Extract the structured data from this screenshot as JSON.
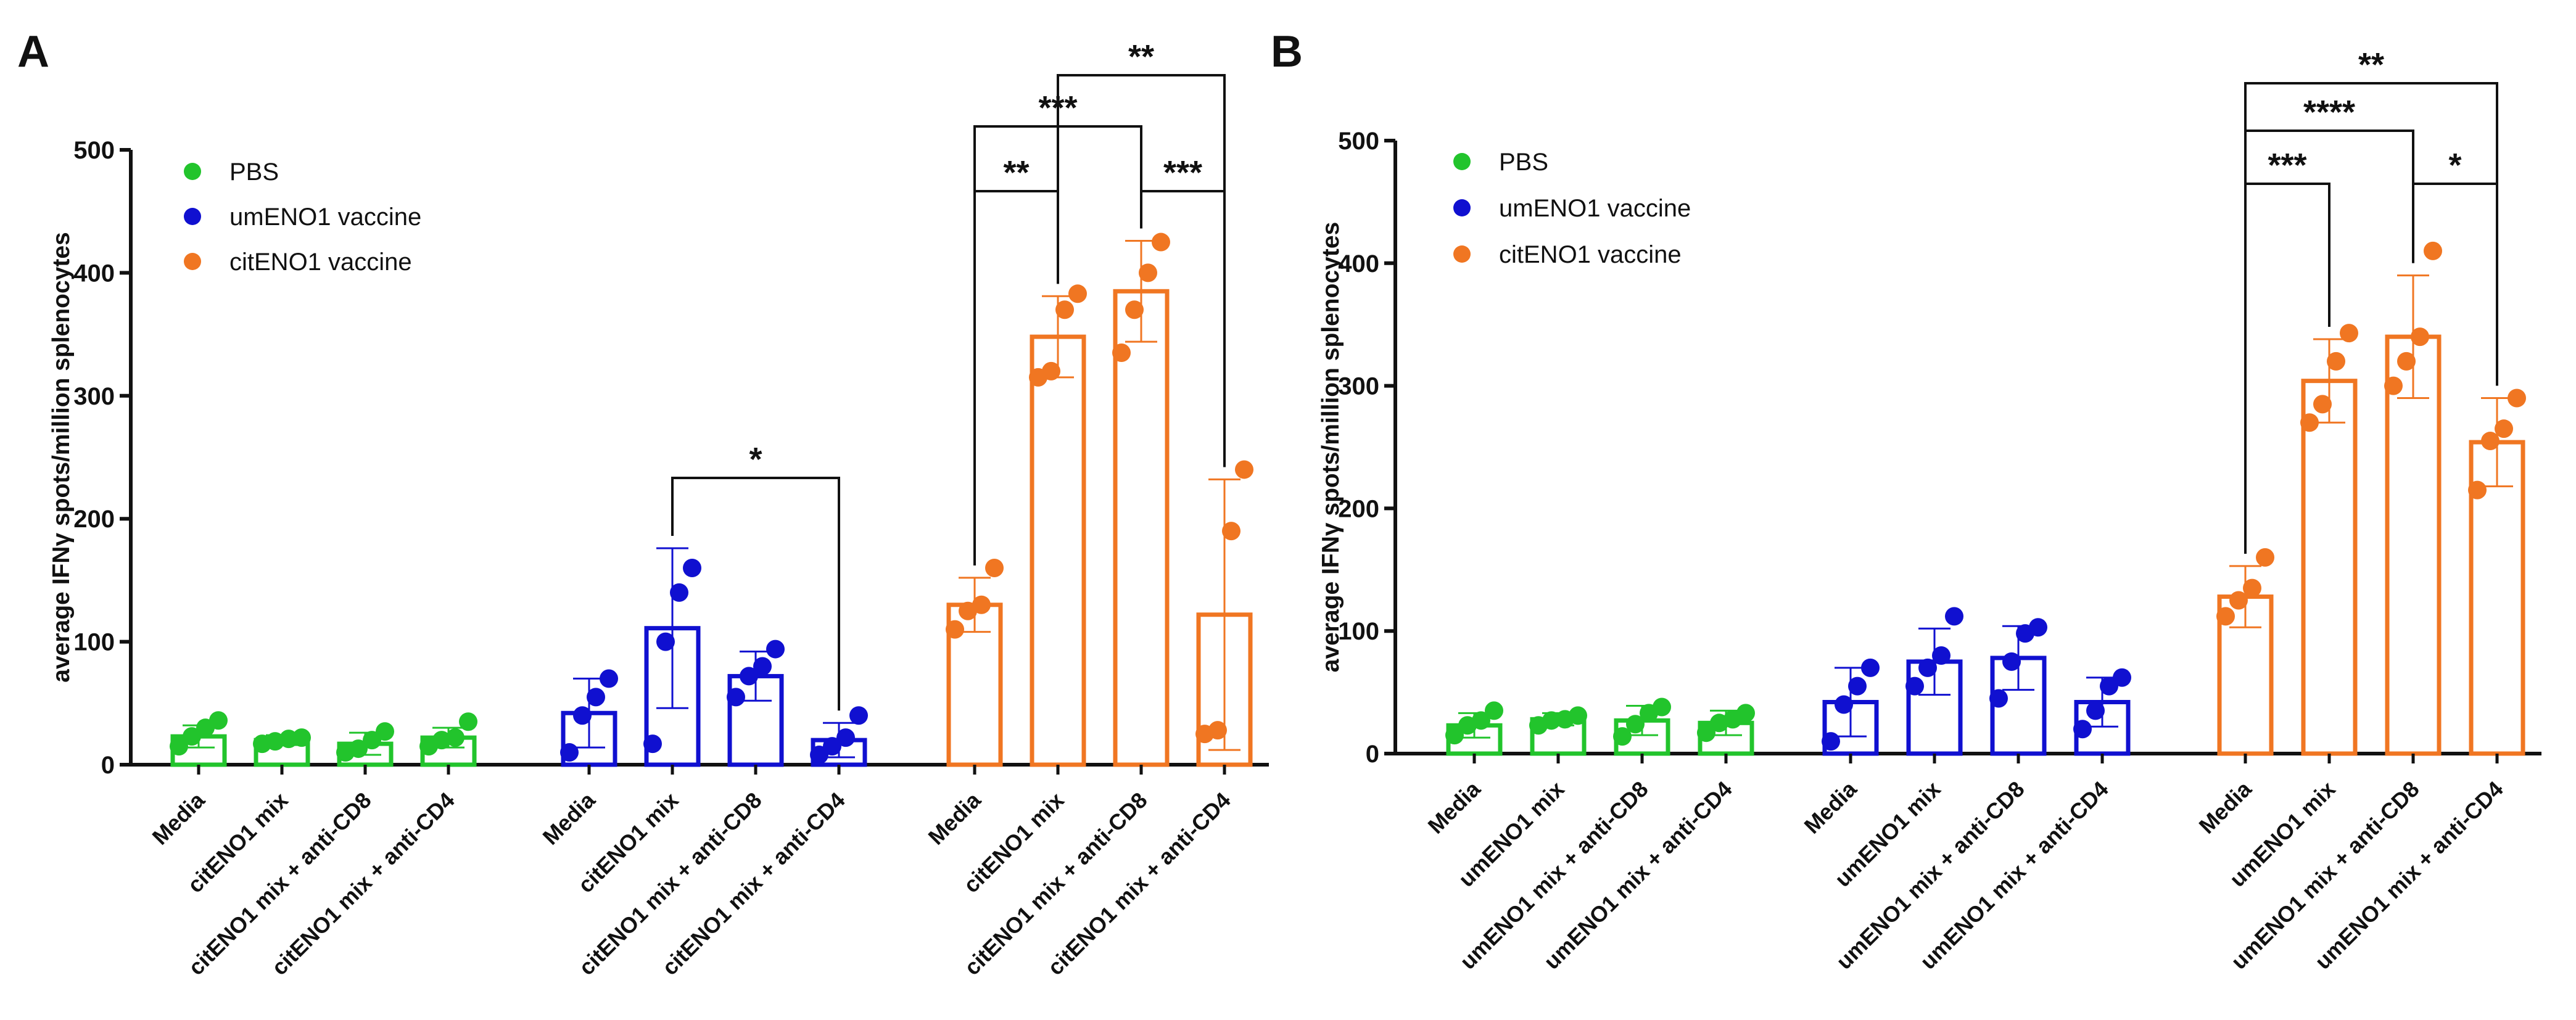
{
  "colors": {
    "PBS": "#22c42c",
    "umENO1 vaccine": "#1010d0",
    "citENO1 vaccine": "#f07622",
    "axis": "#111111"
  },
  "chart_data": [
    {
      "panel": "A",
      "type": "bar",
      "ylabel": "average IFNγ spots/million splenocytes",
      "ylim": [
        0,
        500
      ],
      "yticks": [
        0,
        100,
        200,
        300,
        400,
        500
      ],
      "legend": {
        "placement": "top-left",
        "entries": [
          "PBS",
          "umENO1 vaccine",
          "citENO1 vaccine"
        ]
      },
      "categories": [
        "Media",
        "citENO1 mix",
        "citENO1 mix + anti-CD8",
        "citENO1 mix + anti-CD4"
      ],
      "series": [
        {
          "name": "PBS",
          "values": [
            23,
            20,
            17,
            22
          ],
          "sd": [
            9,
            4,
            9,
            8
          ],
          "points": [
            [
              15,
              23,
              30,
              36
            ],
            [
              17,
              19,
              21,
              22
            ],
            [
              10,
              13,
              20,
              27
            ],
            [
              15,
              20,
              22,
              35
            ]
          ]
        },
        {
          "name": "umENO1 vaccine",
          "values": [
            42,
            111,
            72,
            20
          ],
          "sd": [
            28,
            65,
            20,
            14
          ],
          "points": [
            [
              10,
              40,
              55,
              70
            ],
            [
              17,
              100,
              140,
              160
            ],
            [
              55,
              72,
              80,
              94
            ],
            [
              8,
              15,
              22,
              40
            ]
          ]
        },
        {
          "name": "citENO1 vaccine",
          "values": [
            130,
            348,
            385,
            122
          ],
          "sd": [
            22,
            33,
            41,
            110
          ],
          "points": [
            [
              110,
              125,
              130,
              160
            ],
            [
              315,
              320,
              370,
              383
            ],
            [
              335,
              370,
              400,
              425
            ],
            [
              25,
              28,
              190,
              240
            ]
          ]
        }
      ],
      "significance": [
        {
          "label": "*",
          "from": [
            "umENO1 vaccine",
            "citENO1 mix"
          ],
          "to": [
            "umENO1 vaccine",
            "citENO1 mix + anti-CD4"
          ]
        },
        {
          "label": "**",
          "from": [
            "citENO1 vaccine",
            "Media"
          ],
          "to": [
            "citENO1 vaccine",
            "citENO1 mix"
          ]
        },
        {
          "label": "***",
          "from": [
            "citENO1 vaccine",
            "Media"
          ],
          "to": [
            "citENO1 vaccine",
            "citENO1 mix + anti-CD8"
          ]
        },
        {
          "label": "***",
          "from": [
            "citENO1 vaccine",
            "citENO1 mix + anti-CD8"
          ],
          "to": [
            "citENO1 vaccine",
            "citENO1 mix + anti-CD4"
          ]
        },
        {
          "label": "**",
          "from": [
            "citENO1 vaccine",
            "citENO1 mix"
          ],
          "to": [
            "citENO1 vaccine",
            "citENO1 mix + anti-CD4"
          ]
        }
      ]
    },
    {
      "panel": "B",
      "type": "bar",
      "ylabel": "average IFNγ spots/million splenocytes",
      "ylim": [
        0,
        500
      ],
      "yticks": [
        0,
        100,
        200,
        300,
        400,
        500
      ],
      "legend": {
        "placement": "top-left",
        "entries": [
          "PBS",
          "umENO1 vaccine",
          "citENO1 vaccine"
        ]
      },
      "categories": [
        "Media",
        "umENO1 mix",
        "umENO1 mix + anti-CD8",
        "umENO1 mix + anti-CD4"
      ],
      "series": [
        {
          "name": "PBS",
          "values": [
            23,
            28,
            27,
            25
          ],
          "sd": [
            10,
            5,
            12,
            10
          ],
          "points": [
            [
              15,
              23,
              27,
              35
            ],
            [
              23,
              27,
              28,
              31
            ],
            [
              14,
              24,
              33,
              38
            ],
            [
              17,
              25,
              28,
              33
            ]
          ]
        },
        {
          "name": "umENO1 vaccine",
          "values": [
            42,
            75,
            78,
            42
          ],
          "sd": [
            28,
            27,
            26,
            20
          ],
          "points": [
            [
              10,
              40,
              55,
              70
            ],
            [
              55,
              70,
              80,
              112
            ],
            [
              45,
              75,
              98,
              103
            ],
            [
              20,
              35,
              55,
              62
            ]
          ]
        },
        {
          "name": "citENO1 vaccine",
          "values": [
            128,
            304,
            340,
            254
          ],
          "sd": [
            25,
            34,
            50,
            36
          ],
          "points": [
            [
              112,
              125,
              135,
              160
            ],
            [
              270,
              285,
              320,
              343
            ],
            [
              300,
              320,
              340,
              410
            ],
            [
              215,
              255,
              265,
              290
            ]
          ]
        }
      ],
      "significance": [
        {
          "label": "***",
          "from": [
            "citENO1 vaccine",
            "Media"
          ],
          "to": [
            "citENO1 vaccine",
            "umENO1 mix"
          ]
        },
        {
          "label": "****",
          "from": [
            "citENO1 vaccine",
            "Media"
          ],
          "to": [
            "citENO1 vaccine",
            "umENO1 mix + anti-CD8"
          ]
        },
        {
          "label": "*",
          "from": [
            "citENO1 vaccine",
            "umENO1 mix + anti-CD8"
          ],
          "to": [
            "citENO1 vaccine",
            "umENO1 mix + anti-CD4"
          ]
        },
        {
          "label": "**",
          "from": [
            "citENO1 vaccine",
            "Media"
          ],
          "to": [
            "citENO1 vaccine",
            "umENO1 mix + anti-CD4"
          ]
        }
      ]
    }
  ]
}
